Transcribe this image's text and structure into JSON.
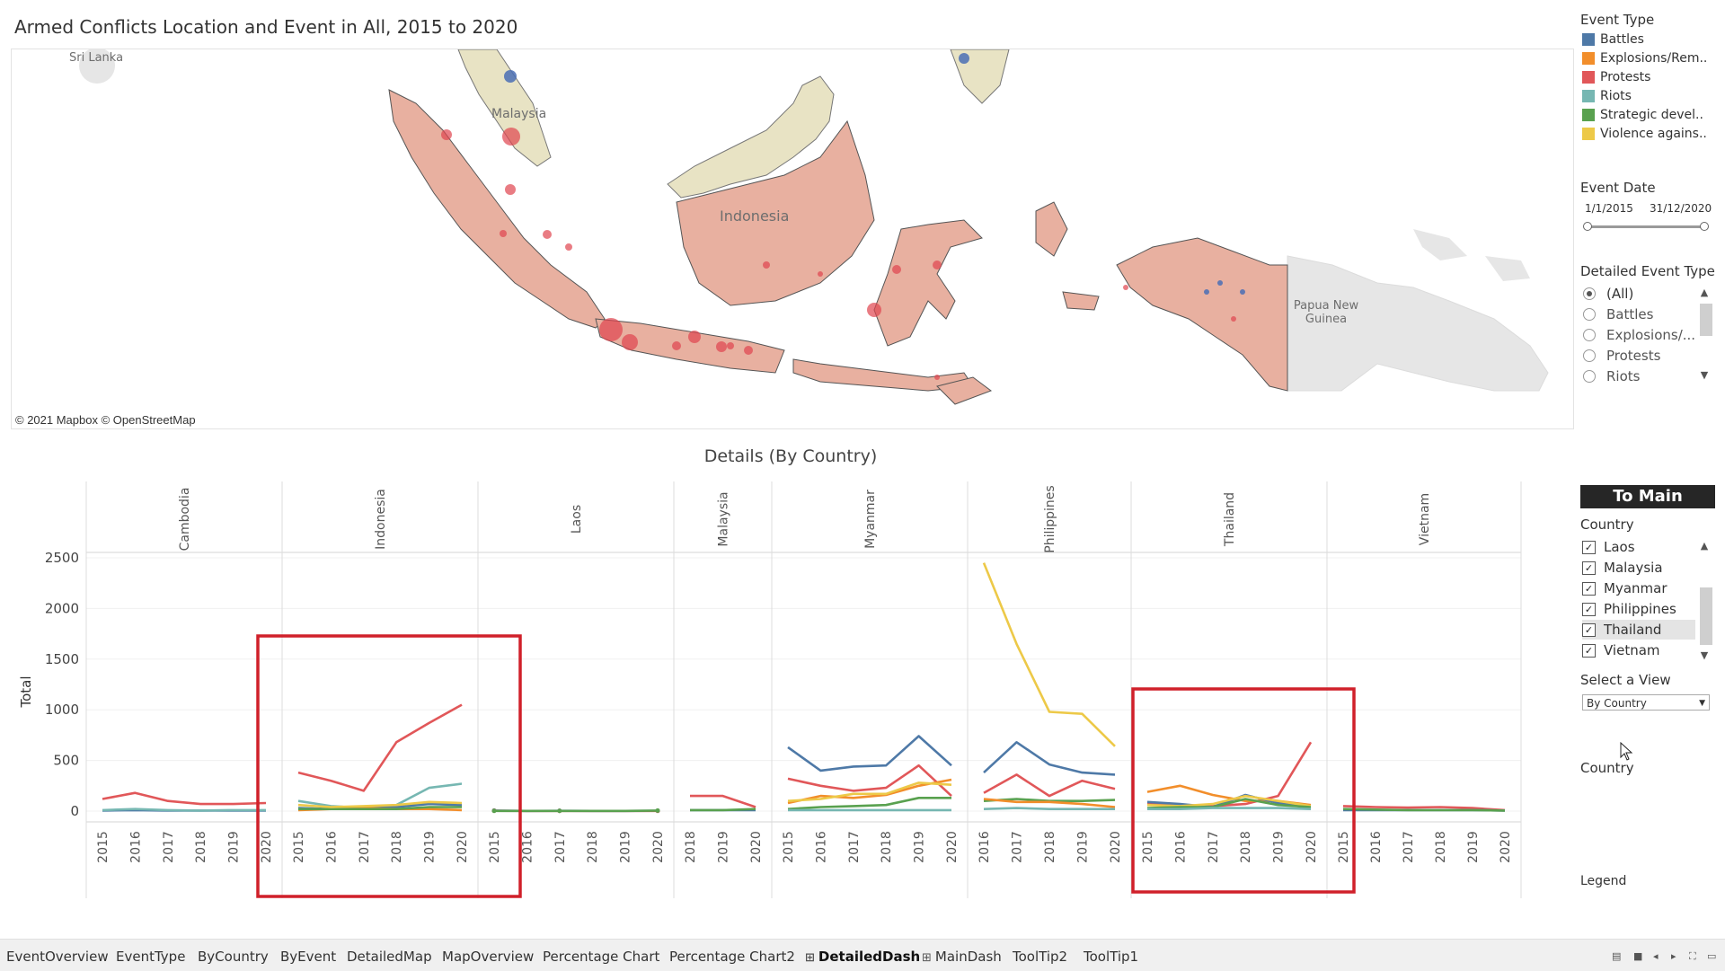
{
  "title": "Armed Conflicts Location and Event in All, 2015 to 2020",
  "map": {
    "labels": {
      "sri_lanka": "Sri Lanka",
      "malaysia": "Malaysia",
      "indonesia": "Indonesia",
      "papua": "Papua New Guinea"
    },
    "attribution": "© 2021 Mapbox © OpenStreetMap",
    "colors": {
      "indonesia_fill": "#e8b0a0",
      "malaysia_fill": "#e8e3c4",
      "png_fill": "#e6e6e6",
      "dot": "#e0454f",
      "battle_dot": "#4a6fb5"
    }
  },
  "legend": {
    "title": "Event Type",
    "items": [
      {
        "label": "Battles",
        "color": "#4e79a7"
      },
      {
        "label": "Explosions/Rem..",
        "color": "#f28e2b"
      },
      {
        "label": "Protests",
        "color": "#e15759"
      },
      {
        "label": "Riots",
        "color": "#76b7b2"
      },
      {
        "label": "Strategic devel..",
        "color": "#59a14f"
      },
      {
        "label": "Violence agains..",
        "color": "#edc948"
      }
    ]
  },
  "event_date": {
    "title": "Event Date",
    "start": "1/1/2015",
    "end": "31/12/2020"
  },
  "detailed_event_type": {
    "title": "Detailed Event Type",
    "options": [
      "(All)",
      "Battles",
      "Explosions/...",
      "Protests",
      "Riots"
    ],
    "selected": "(All)"
  },
  "to_main": "To Main",
  "country_filter": {
    "title": "Country",
    "items": [
      "Laos",
      "Malaysia",
      "Myanmar",
      "Philippines",
      "Thailand",
      "Vietnam"
    ],
    "highlighted": "Thailand"
  },
  "select_view": {
    "title": "Select a View",
    "value": "By Country"
  },
  "country_label": "Country",
  "legend_label": "Legend",
  "chart": {
    "title": "Details (By Country)",
    "y_label": "Total",
    "y_ticks": [
      "2500",
      "2000",
      "1500",
      "1000",
      "500",
      "0"
    ]
  },
  "chart_data": {
    "type": "line",
    "title": "Details (By Country)",
    "ylabel": "Total",
    "ylim": [
      0,
      2600
    ],
    "panels": [
      {
        "country": "Cambodia",
        "years": [
          "2015",
          "2016",
          "2017",
          "2018",
          "2019",
          "2020"
        ],
        "series": [
          {
            "name": "Protests",
            "values": [
              120,
              180,
              100,
              70,
              70,
              80
            ]
          },
          {
            "name": "Battles",
            "values": [
              5,
              10,
              5,
              5,
              5,
              5
            ]
          },
          {
            "name": "Riots",
            "values": [
              10,
              20,
              10,
              5,
              10,
              10
            ]
          }
        ]
      },
      {
        "country": "Indonesia",
        "years": [
          "2015",
          "2016",
          "2017",
          "2018",
          "2019",
          "2020"
        ],
        "series": [
          {
            "name": "Protests",
            "values": [
              380,
              300,
              200,
              680,
              870,
              1050
            ]
          },
          {
            "name": "Riots",
            "values": [
              100,
              50,
              30,
              60,
              230,
              270
            ]
          },
          {
            "name": "Battles",
            "values": [
              30,
              20,
              25,
              40,
              70,
              60
            ]
          },
          {
            "name": "Explosions/Remote violence",
            "values": [
              10,
              20,
              30,
              20,
              20,
              10
            ]
          },
          {
            "name": "Strategic developments",
            "values": [
              20,
              20,
              20,
              20,
              40,
              40
            ]
          },
          {
            "name": "Violence against civilians",
            "values": [
              60,
              40,
              50,
              60,
              90,
              80
            ]
          }
        ]
      },
      {
        "country": "Laos",
        "years": [
          "2015",
          "2016",
          "2017",
          "2018",
          "2019",
          "2020"
        ],
        "series": [
          {
            "name": "Battles",
            "values": [
              5,
              2,
              3,
              2,
              2,
              3
            ]
          },
          {
            "name": "Protests",
            "values": [
              3,
              2,
              2,
              2,
              2,
              2
            ]
          },
          {
            "name": "Strategic developments",
            "values": [
              2,
              2,
              2,
              2,
              2,
              5
            ]
          }
        ]
      },
      {
        "country": "Malaysia",
        "years": [
          "2018",
          "2019",
          "2020"
        ],
        "series": [
          {
            "name": "Protests",
            "values": [
              150,
              150,
              40
            ]
          },
          {
            "name": "Battles",
            "values": [
              10,
              10,
              10
            ]
          },
          {
            "name": "Strategic developments",
            "values": [
              10,
              10,
              20
            ]
          }
        ]
      },
      {
        "country": "Myanmar",
        "years": [
          "2015",
          "2016",
          "2017",
          "2018",
          "2019",
          "2020"
        ],
        "series": [
          {
            "name": "Battles",
            "values": [
              630,
              400,
              440,
              450,
              740,
              450
            ]
          },
          {
            "name": "Protests",
            "values": [
              320,
              250,
              200,
              230,
              450,
              150
            ]
          },
          {
            "name": "Explosions/Remote violence",
            "values": [
              80,
              150,
              130,
              160,
              250,
              310
            ]
          },
          {
            "name": "Violence against civilians",
            "values": [
              100,
              120,
              170,
              170,
              280,
              260
            ]
          },
          {
            "name": "Strategic developments",
            "values": [
              20,
              40,
              50,
              60,
              130,
              130
            ]
          },
          {
            "name": "Riots",
            "values": [
              10,
              10,
              10,
              10,
              10,
              10
            ]
          }
        ]
      },
      {
        "country": "Philippines",
        "years": [
          "2016",
          "2017",
          "2018",
          "2019",
          "2020"
        ],
        "series": [
          {
            "name": "Violence against civilians",
            "values": [
              2450,
              1650,
              980,
              960,
              640
            ]
          },
          {
            "name": "Battles",
            "values": [
              380,
              680,
              460,
              380,
              360
            ]
          },
          {
            "name": "Protests",
            "values": [
              180,
              360,
              150,
              300,
              220
            ]
          },
          {
            "name": "Strategic developments",
            "values": [
              100,
              120,
              100,
              100,
              110
            ]
          },
          {
            "name": "Explosions/Remote violence",
            "values": [
              120,
              90,
              90,
              70,
              40
            ]
          },
          {
            "name": "Riots",
            "values": [
              20,
              30,
              20,
              20,
              20
            ]
          }
        ]
      },
      {
        "country": "Thailand",
        "years": [
          "2015",
          "2016",
          "2017",
          "2018",
          "2019",
          "2020"
        ],
        "series": [
          {
            "name": "Protests",
            "values": [
              80,
              60,
              50,
              70,
              150,
              680
            ]
          },
          {
            "name": "Explosions/Remote violence",
            "values": [
              190,
              250,
              160,
              100,
              100,
              60
            ]
          },
          {
            "name": "Battles",
            "values": [
              90,
              70,
              40,
              160,
              80,
              30
            ]
          },
          {
            "name": "Violence against civilians",
            "values": [
              60,
              50,
              70,
              150,
              100,
              50
            ]
          },
          {
            "name": "Strategic developments",
            "values": [
              30,
              40,
              40,
              120,
              60,
              40
            ]
          },
          {
            "name": "Riots",
            "values": [
              20,
              20,
              30,
              30,
              30,
              20
            ]
          }
        ]
      },
      {
        "country": "Vietnam",
        "years": [
          "2015",
          "2016",
          "2017",
          "2018",
          "2019",
          "2020"
        ],
        "series": [
          {
            "name": "Protests",
            "values": [
              50,
              40,
              35,
              40,
              30,
              10
            ]
          },
          {
            "name": "Battles",
            "values": [
              10,
              10,
              10,
              10,
              10,
              5
            ]
          },
          {
            "name": "Strategic developments",
            "values": [
              20,
              15,
              10,
              10,
              10,
              5
            ]
          }
        ]
      }
    ]
  },
  "tabs": [
    {
      "label": "EventOverview"
    },
    {
      "label": "EventType"
    },
    {
      "label": "ByCountry"
    },
    {
      "label": "ByEvent"
    },
    {
      "label": "DetailedMap"
    },
    {
      "label": "MapOverview"
    },
    {
      "label": "Percentage Chart"
    },
    {
      "label": "Percentage Chart2"
    },
    {
      "label": "DetailedDash",
      "icon": "⊞",
      "active": true
    },
    {
      "label": "MainDash",
      "icon": "⊞"
    },
    {
      "label": "ToolTip2"
    },
    {
      "label": "ToolTip1"
    }
  ],
  "annotation_color": "#d0202a"
}
